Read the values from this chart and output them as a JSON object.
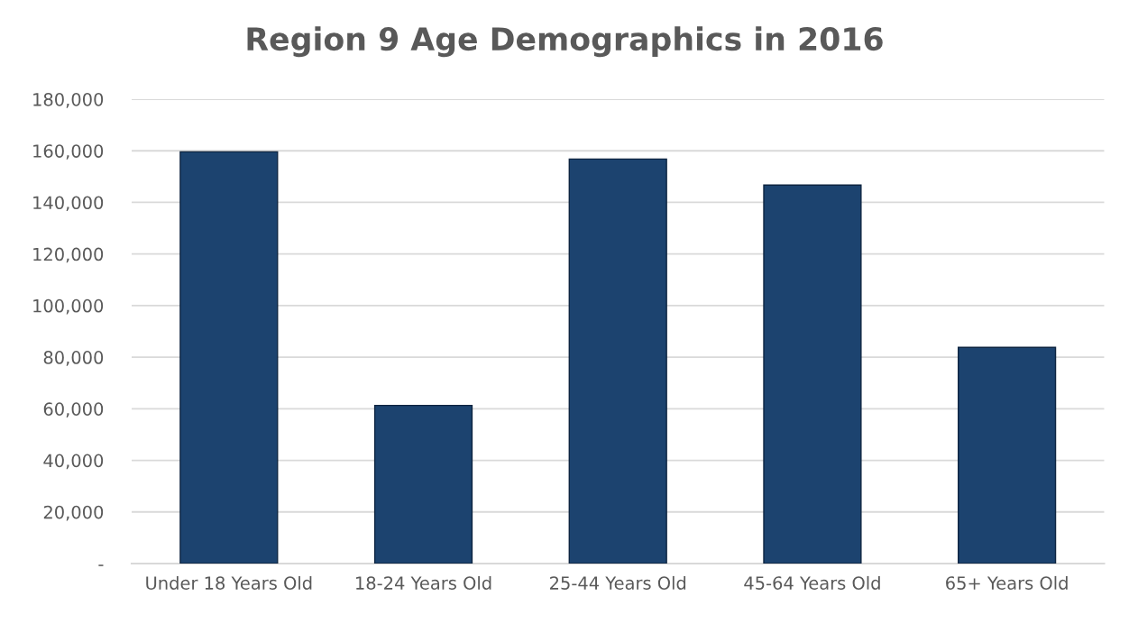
{
  "chart_data": {
    "type": "bar",
    "title": "Region 9 Age Demographics in 2016",
    "categories": [
      "Under 18 Years Old",
      "18-24 Years Old",
      "25-44 Years Old",
      "45-64 Years Old",
      "65+ Years Old"
    ],
    "values": [
      159600,
      61300,
      156800,
      146700,
      83800
    ],
    "color": "#1c436f",
    "ylim": [
      0,
      180000
    ],
    "yticks": [
      {
        "value": 0,
        "label": "-"
      },
      {
        "value": 20000,
        "label": "20,000"
      },
      {
        "value": 40000,
        "label": "40,000"
      },
      {
        "value": 60000,
        "label": "60,000"
      },
      {
        "value": 80000,
        "label": "80,000"
      },
      {
        "value": 100000,
        "label": "100,000"
      },
      {
        "value": 120000,
        "label": "120,000"
      },
      {
        "value": 140000,
        "label": "140,000"
      },
      {
        "value": 160000,
        "label": "160,000"
      },
      {
        "value": 180000,
        "label": "180,000"
      }
    ],
    "grid": "y",
    "legend": false
  }
}
